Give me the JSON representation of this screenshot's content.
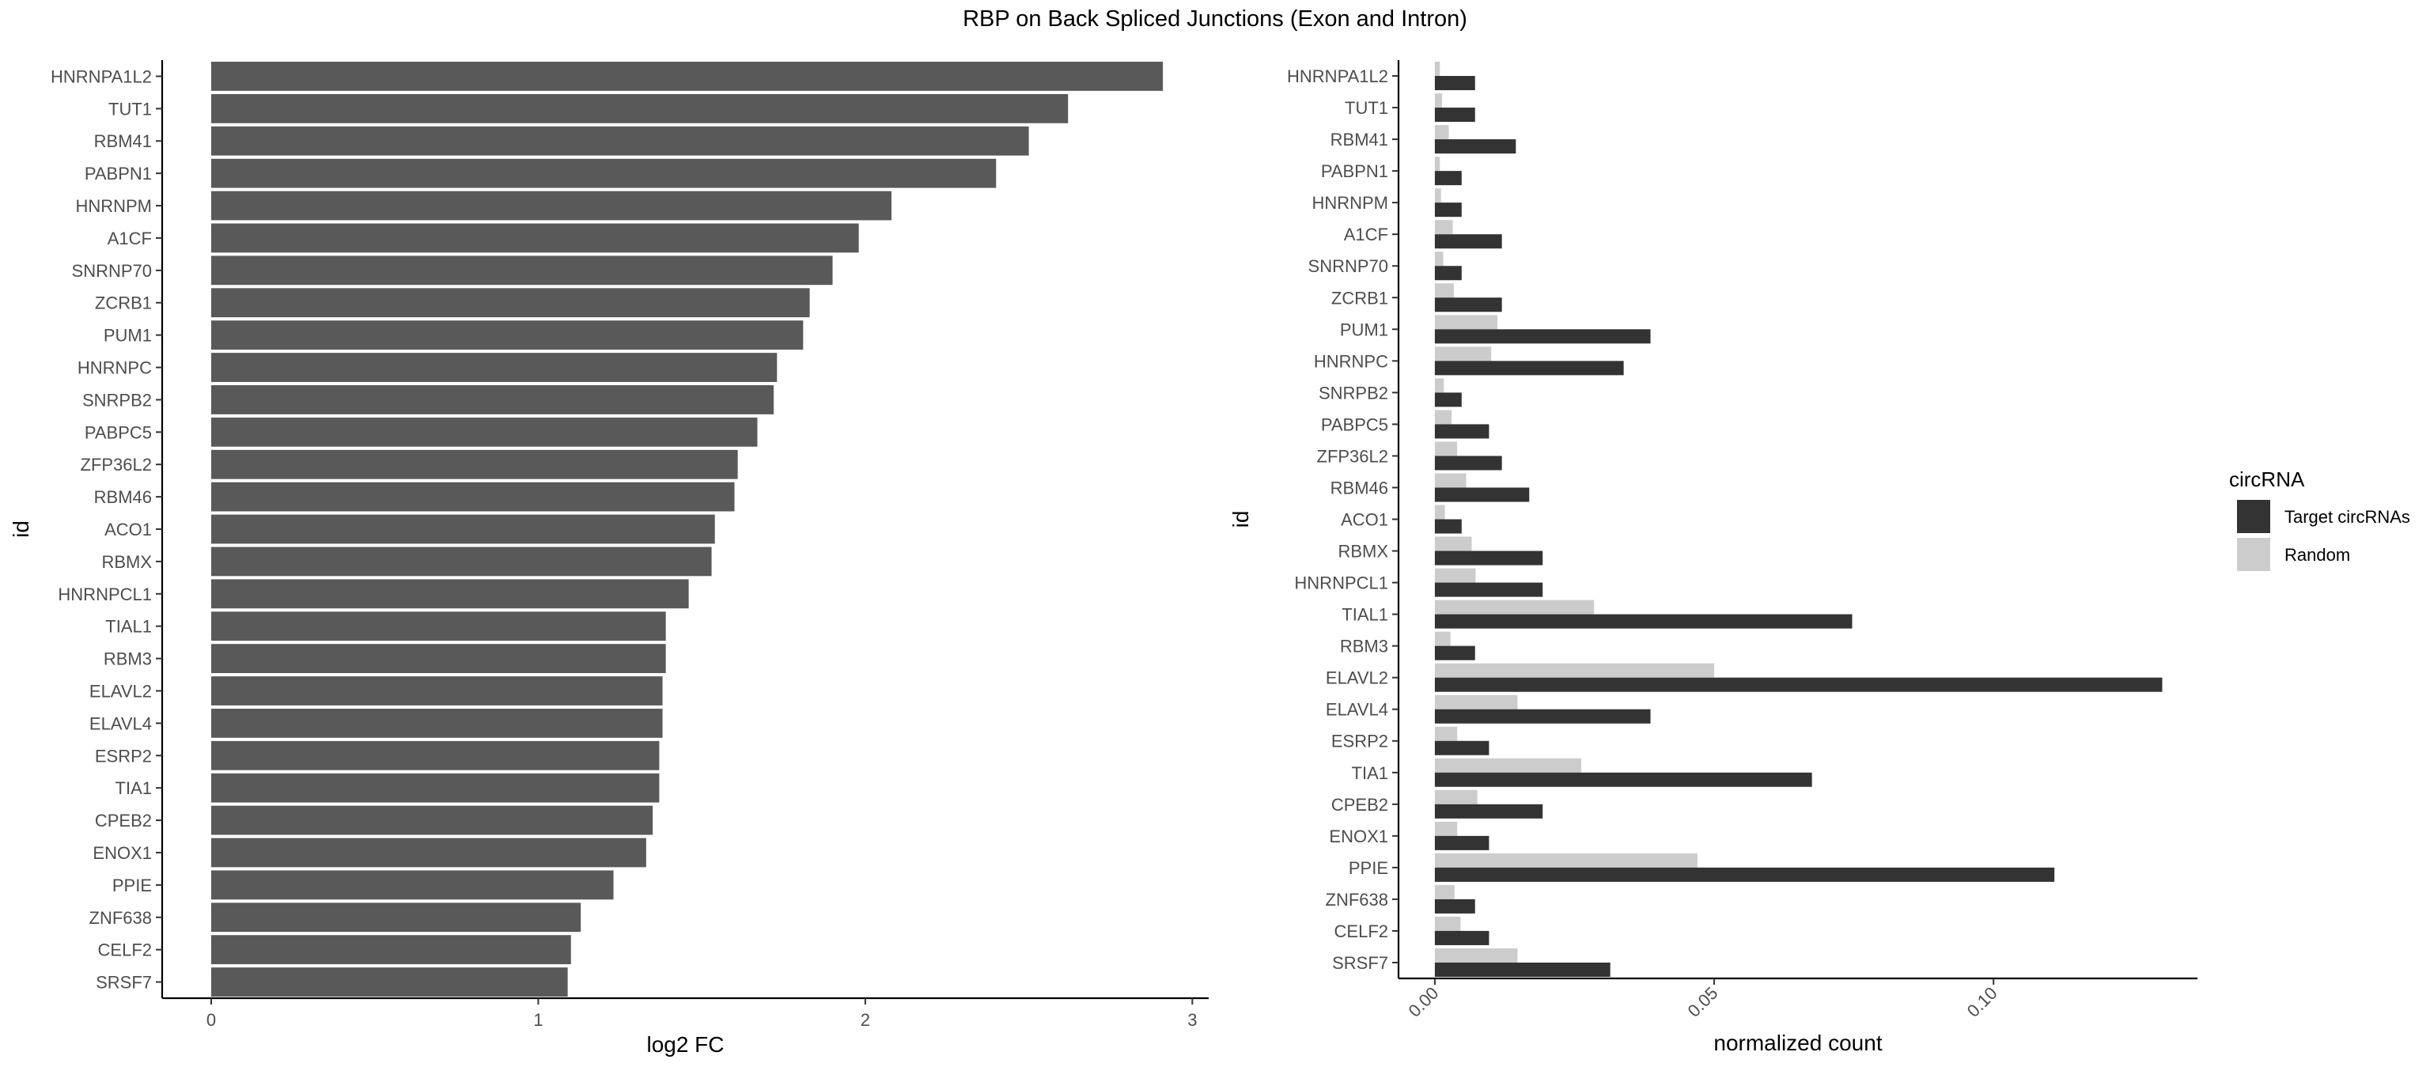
{
  "title": "RBP on Back Spliced Junctions (Exon and Intron)",
  "colors": {
    "bar": "#595959",
    "target": "#333333",
    "random": "#cccccc",
    "text": "#4d4d4d",
    "axis": "#000000"
  },
  "chart_data": [
    {
      "type": "bar",
      "orientation": "horizontal",
      "categories": [
        "HNRNPA1L2",
        "TUT1",
        "RBM41",
        "PABPN1",
        "HNRNPM",
        "A1CF",
        "SNRNP70",
        "ZCRB1",
        "PUM1",
        "HNRNPC",
        "SNRPB2",
        "PABPC5",
        "ZFP36L2",
        "RBM46",
        "ACO1",
        "RBMX",
        "HNRNPCL1",
        "TIAL1",
        "RBM3",
        "ELAVL2",
        "ELAVL4",
        "ESRP2",
        "TIA1",
        "CPEB2",
        "ENOX1",
        "PPIE",
        "ZNF638",
        "CELF2",
        "SRSF7"
      ],
      "values": [
        2.91,
        2.62,
        2.5,
        2.4,
        2.08,
        1.98,
        1.9,
        1.83,
        1.81,
        1.73,
        1.72,
        1.67,
        1.61,
        1.6,
        1.54,
        1.53,
        1.46,
        1.39,
        1.39,
        1.38,
        1.38,
        1.37,
        1.37,
        1.35,
        1.33,
        1.23,
        1.13,
        1.1,
        1.09
      ],
      "xlabel": "log2 FC",
      "ylabel": "id",
      "xlim": [
        -0.15,
        3.05
      ],
      "xticks": [
        0,
        1,
        2,
        3
      ]
    },
    {
      "type": "bar",
      "orientation": "horizontal",
      "grouped": true,
      "categories": [
        "HNRNPA1L2",
        "TUT1",
        "RBM41",
        "PABPN1",
        "HNRNPM",
        "A1CF",
        "SNRNP70",
        "ZCRB1",
        "PUM1",
        "HNRNPC",
        "SNRPB2",
        "PABPC5",
        "ZFP36L2",
        "RBM46",
        "ACO1",
        "RBMX",
        "HNRNPCL1",
        "TIAL1",
        "RBM3",
        "ELAVL2",
        "ELAVL4",
        "ESRP2",
        "TIA1",
        "CPEB2",
        "ENOX1",
        "PPIE",
        "ZNF638",
        "CELF2",
        "SRSF7"
      ],
      "series": [
        {
          "name": "Target circRNAs",
          "values": [
            0.0072,
            0.0072,
            0.0145,
            0.0048,
            0.0048,
            0.012,
            0.0048,
            0.012,
            0.0386,
            0.0338,
            0.0048,
            0.0097,
            0.012,
            0.0169,
            0.0048,
            0.0193,
            0.0193,
            0.0747,
            0.0072,
            0.1302,
            0.0386,
            0.0097,
            0.0675,
            0.0193,
            0.0097,
            0.1109,
            0.0072,
            0.0097,
            0.0314
          ]
        },
        {
          "name": "Random",
          "values": [
            0.0009,
            0.0013,
            0.0025,
            0.0009,
            0.0011,
            0.0032,
            0.0015,
            0.0034,
            0.0112,
            0.0101,
            0.0016,
            0.003,
            0.004,
            0.0056,
            0.0018,
            0.0066,
            0.0073,
            0.0285,
            0.0028,
            0.05,
            0.0148,
            0.004,
            0.0262,
            0.0076,
            0.004,
            0.047,
            0.0035,
            0.0046,
            0.0148
          ]
        }
      ],
      "xlabel": "normalized count",
      "ylabel": "id",
      "xlim": [
        -0.0065,
        0.1365
      ],
      "xticks": [
        0,
        0.05,
        0.1
      ],
      "xticklabels": [
        "0.00",
        "0.05",
        "0.10"
      ],
      "legend": {
        "title": "circRNA",
        "position": "right"
      }
    }
  ]
}
